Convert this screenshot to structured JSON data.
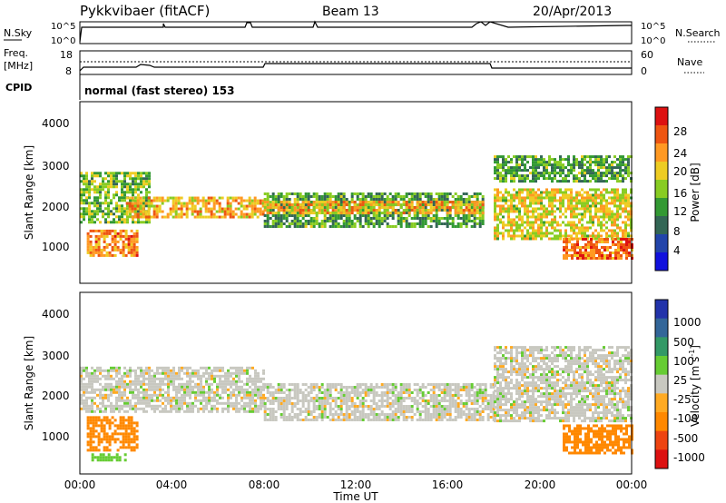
{
  "header": {
    "station": "Pykkvibaer (fitACF)",
    "beam": "Beam 13",
    "date": "20/Apr/2013"
  },
  "noise_panel": {
    "left_label": "N.Sky",
    "right_label": "N.Search",
    "ticks_left": [
      "10^5",
      "10^0"
    ],
    "ticks_right": [
      "10^5",
      "10^0"
    ]
  },
  "freq_panel": {
    "left_label_1": "Freq.",
    "left_label_2": "[MHz]",
    "right_label": "Nave",
    "ticks_left": [
      "18",
      "8"
    ],
    "ticks_right": [
      "60",
      "0"
    ]
  },
  "cpid_panel": {
    "label": "CPID",
    "text": "normal (fast stereo) 153"
  },
  "power_panel": {
    "ylabel": "Slant Range [km]",
    "yticks": [
      "4000",
      "3000",
      "2000",
      "1000"
    ],
    "colorbar_label": "Power [dB]",
    "colorbar_ticks": [
      "28",
      "24",
      "20",
      "16",
      "12",
      "8",
      "4"
    ],
    "colorbar_colors": [
      "#dd1111",
      "#ee5511",
      "#ff9922",
      "#eecc22",
      "#88cc22",
      "#339933",
      "#336655",
      "#2244aa",
      "#1111dd"
    ]
  },
  "velocity_panel": {
    "ylabel": "Slant Range [km]",
    "yticks": [
      "4000",
      "3000",
      "2000",
      "1000"
    ],
    "colorbar_label": "Velocity [m s",
    "colorbar_label_sup": "-1",
    "colorbar_label_end": "]",
    "colorbar_ticks": [
      "1000",
      "500",
      "100",
      "25",
      "-25",
      "-100",
      "-500",
      "-1000"
    ],
    "colorbar_colors": [
      "#2233aa",
      "#336699",
      "#339966",
      "#66cc33",
      "#c8c8c0",
      "#ffaa22",
      "#ff8800",
      "#ee4411",
      "#dd1111"
    ]
  },
  "xaxis": {
    "label": "Time UT",
    "ticks": [
      "00:00",
      "04:00",
      "08:00",
      "12:00",
      "16:00",
      "20:00",
      "00:00"
    ]
  },
  "chart_data": {
    "type": "heatmap",
    "title": "Pykkvibaer (fitACF)",
    "x_range_hours": [
      0,
      24
    ],
    "y_range_km": [
      200,
      4600
    ],
    "power_colorbar_range_db": [
      0,
      30
    ],
    "velocity_colorbar_range": [
      -1000,
      1000
    ],
    "freq_steps": [
      {
        "from_hour": 0,
        "to_hour": 8,
        "freq_mhz": 9.5
      },
      {
        "from_hour": 8,
        "to_hour": 18,
        "freq_mhz": 11.5
      },
      {
        "from_hour": 18,
        "to_hour": 24,
        "freq_mhz": 9.5
      }
    ],
    "power_bands": [
      {
        "from_hour": 0,
        "to_hour": 3,
        "range_km": [
          1700,
          2900
        ],
        "db": 14
      },
      {
        "from_hour": 0.3,
        "to_hour": 2.5,
        "range_km": [
          900,
          1500
        ],
        "db": 22
      },
      {
        "from_hour": 2,
        "to_hour": 8,
        "range_km": [
          1800,
          2300
        ],
        "db": 20
      },
      {
        "from_hour": 8,
        "to_hour": 17.5,
        "range_km": [
          1600,
          2400
        ],
        "db": 12
      },
      {
        "from_hour": 8,
        "to_hour": 17.5,
        "range_km": [
          1900,
          2200
        ],
        "db": 20
      },
      {
        "from_hour": 18,
        "to_hour": 24,
        "range_km": [
          1300,
          2500
        ],
        "db": 18
      },
      {
        "from_hour": 18,
        "to_hour": 24,
        "range_km": [
          2700,
          3300
        ],
        "db": 12
      },
      {
        "from_hour": 21,
        "to_hour": 24,
        "range_km": [
          800,
          1300
        ],
        "db": 24
      }
    ],
    "velocity_bands": [
      {
        "from_hour": 0,
        "to_hour": 8,
        "range_km": [
          1700,
          2800
        ],
        "velocity": 0
      },
      {
        "from_hour": 8,
        "to_hour": 18,
        "range_km": [
          1500,
          2400
        ],
        "velocity": 0
      },
      {
        "from_hour": 0.3,
        "to_hour": 2.5,
        "range_km": [
          800,
          1600
        ],
        "velocity": -200
      },
      {
        "from_hour": 18,
        "to_hour": 24,
        "range_km": [
          1500,
          3300
        ],
        "velocity": 0
      },
      {
        "from_hour": 21,
        "to_hour": 24,
        "range_km": [
          700,
          1400
        ],
        "velocity": -200
      },
      {
        "from_hour": 0.5,
        "to_hour": 2.0,
        "range_km": [
          550,
          700
        ],
        "velocity": 60
      }
    ]
  }
}
